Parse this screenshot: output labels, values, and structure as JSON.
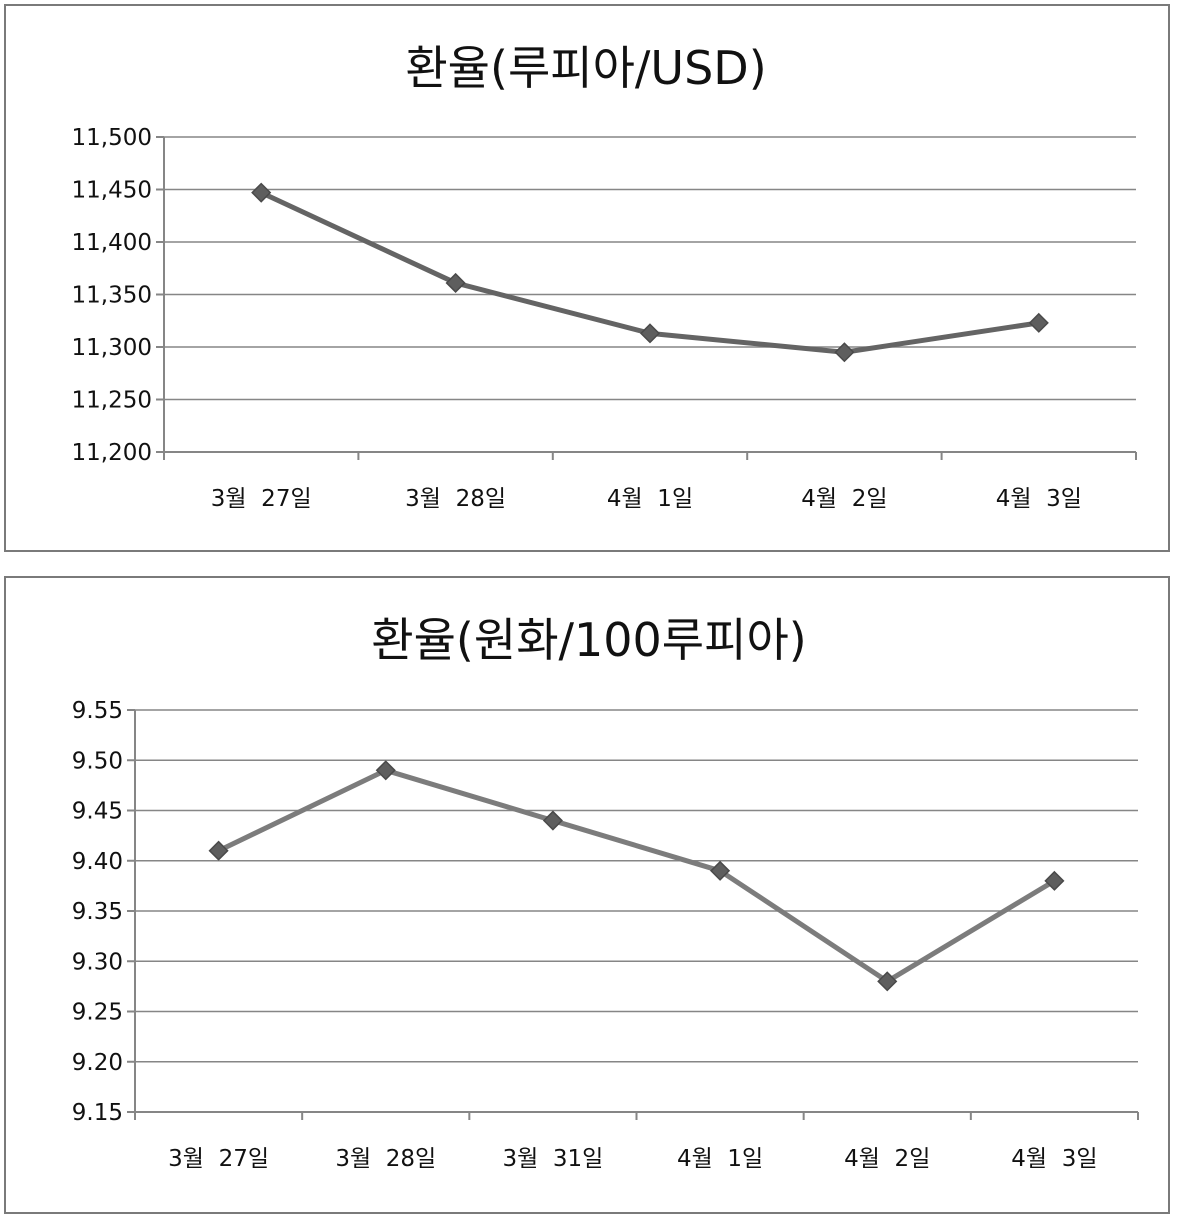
{
  "chart_data": [
    {
      "type": "line",
      "title": "환율(루피아/USD)",
      "xlabel": "",
      "ylabel": "",
      "categories": [
        "3월  27일",
        "3월  28일",
        "4월  1일",
        "4월  2일",
        "4월  3일"
      ],
      "series": [
        {
          "values": [
            11447,
            11361,
            11313,
            11295,
            11323
          ]
        }
      ],
      "ylim": [
        11200,
        11500
      ],
      "ytick_labels": [
        "11,200",
        "11,250",
        "11,300",
        "11,350",
        "11,400",
        "11,450",
        "11,500"
      ],
      "grid": true,
      "legend": "none",
      "line_color": "#646464",
      "marker": "diamond"
    },
    {
      "type": "line",
      "title": "환율(원화/100루피아)",
      "xlabel": "",
      "ylabel": "",
      "categories": [
        "3월  27일",
        "3월  28일",
        "3월  31일",
        "4월  1일",
        "4월  2일",
        "4월  3일"
      ],
      "series": [
        {
          "values": [
            9.41,
            9.49,
            9.44,
            9.39,
            9.28,
            9.38
          ]
        }
      ],
      "ylim": [
        9.15,
        9.55
      ],
      "ytick_labels": [
        "9.15",
        "9.20",
        "9.25",
        "9.30",
        "9.35",
        "9.40",
        "9.45",
        "9.50",
        "9.55"
      ],
      "grid": true,
      "legend": "none",
      "line_color": "#7c7c7c",
      "marker": "diamond"
    }
  ]
}
